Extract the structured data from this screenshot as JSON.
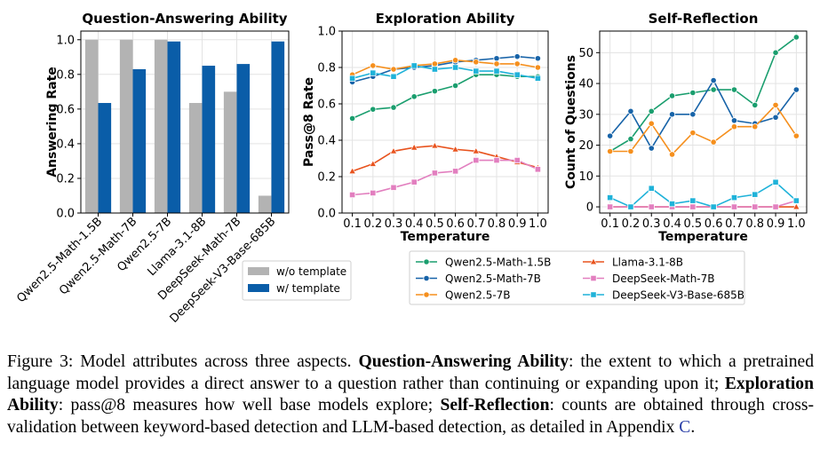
{
  "chart_data": [
    {
      "type": "bar",
      "title": "Question-Answering Ability",
      "xlabel": "",
      "ylabel": "Answering Rate",
      "ylim": [
        0,
        1.05
      ],
      "yticks": [
        "0.0",
        "0.2",
        "0.4",
        "0.6",
        "0.8",
        "1.0"
      ],
      "grid": true,
      "legend_placement": "lower-right",
      "categories": [
        "Qwen2.5-Math-1.5B",
        "Qwen2.5-Math-7B",
        "Qwen2.5-7B",
        "Llama-3.1-8B",
        "DeepSeek-Math-7B",
        "DeepSeek-V3-Base-685B"
      ],
      "series": [
        {
          "name": "w/o template",
          "color": "#b3b3b3",
          "values": [
            1.0,
            1.0,
            1.0,
            0.635,
            0.7,
            0.1
          ]
        },
        {
          "name": "w/ template",
          "color": "#0a5da8",
          "values": [
            0.635,
            0.83,
            0.99,
            0.85,
            0.86,
            0.99
          ]
        }
      ]
    },
    {
      "type": "line",
      "title": "Exploration Ability",
      "xlabel": "Temperature",
      "ylabel": "Pass@8 Rate",
      "xlim": [
        0.05,
        1.05
      ],
      "ylim": [
        0.0,
        1.0
      ],
      "yticks": [
        "0.0",
        "0.2",
        "0.4",
        "0.6",
        "0.8",
        "1.0"
      ],
      "xticks": [
        "0.1",
        "0.2",
        "0.3",
        "0.4",
        "0.5",
        "0.6",
        "0.7",
        "0.8",
        "0.9",
        "1.0"
      ],
      "grid": true,
      "x": [
        0.1,
        0.2,
        0.3,
        0.4,
        0.5,
        0.6,
        0.7,
        0.8,
        0.9,
        1.0
      ],
      "series": [
        {
          "name": "Qwen2.5-Math-1.5B",
          "color": "#1a9e6e",
          "marker": "circle",
          "values": [
            0.52,
            0.57,
            0.58,
            0.64,
            0.67,
            0.7,
            0.76,
            0.76,
            0.75,
            0.75
          ]
        },
        {
          "name": "Qwen2.5-Math-7B",
          "color": "#1763a8",
          "marker": "circle",
          "values": [
            0.72,
            0.75,
            0.79,
            0.8,
            0.81,
            0.83,
            0.84,
            0.85,
            0.86,
            0.85
          ]
        },
        {
          "name": "Qwen2.5-7B",
          "color": "#f58f1d",
          "marker": "circle",
          "values": [
            0.76,
            0.81,
            0.79,
            0.81,
            0.82,
            0.84,
            0.83,
            0.82,
            0.82,
            0.8
          ]
        },
        {
          "name": "Llama-3.1-8B",
          "color": "#e8531e",
          "marker": "triangle",
          "values": [
            0.23,
            0.27,
            0.34,
            0.36,
            0.37,
            0.35,
            0.34,
            0.31,
            0.28,
            0.25
          ]
        },
        {
          "name": "DeepSeek-Math-7B",
          "color": "#e27fbf",
          "marker": "square",
          "values": [
            0.1,
            0.11,
            0.14,
            0.17,
            0.22,
            0.23,
            0.29,
            0.29,
            0.29,
            0.24
          ]
        },
        {
          "name": "DeepSeek-V3-Base-685B",
          "color": "#1fb2d9",
          "marker": "square",
          "values": [
            0.74,
            0.77,
            0.75,
            0.81,
            0.79,
            0.8,
            0.78,
            0.78,
            0.76,
            0.74
          ]
        }
      ]
    },
    {
      "type": "line",
      "title": "Self-Reflection",
      "xlabel": "Temperature",
      "ylabel": "Count of Questions",
      "xlim": [
        0.05,
        1.05
      ],
      "ylim": [
        -2,
        57
      ],
      "yticks": [
        "0",
        "10",
        "20",
        "30",
        "40",
        "50"
      ],
      "xticks": [
        "0.1",
        "0.2",
        "0.3",
        "0.4",
        "0.5",
        "0.6",
        "0.7",
        "0.8",
        "0.9",
        "1.0"
      ],
      "grid": true,
      "x": [
        0.1,
        0.2,
        0.3,
        0.4,
        0.5,
        0.6,
        0.7,
        0.8,
        0.9,
        1.0
      ],
      "series": [
        {
          "name": "Qwen2.5-Math-1.5B",
          "color": "#1a9e6e",
          "marker": "circle",
          "values": [
            18,
            22,
            31,
            36,
            37,
            38,
            38,
            33,
            50,
            55
          ]
        },
        {
          "name": "Qwen2.5-Math-7B",
          "color": "#1763a8",
          "marker": "circle",
          "values": [
            23,
            31,
            19,
            30,
            30,
            41,
            28,
            27,
            29,
            38
          ]
        },
        {
          "name": "Qwen2.5-7B",
          "color": "#f58f1d",
          "marker": "circle",
          "values": [
            18,
            18,
            27,
            17,
            24,
            21,
            26,
            26,
            33,
            23
          ]
        },
        {
          "name": "Llama-3.1-8B",
          "color": "#e8531e",
          "marker": "triangle",
          "values": [
            0,
            0,
            0,
            0,
            0,
            0,
            0,
            0,
            0,
            0
          ]
        },
        {
          "name": "DeepSeek-Math-7B",
          "color": "#e27fbf",
          "marker": "square",
          "values": [
            0,
            0,
            0,
            0,
            0,
            0,
            0,
            0,
            0,
            2
          ]
        },
        {
          "name": "DeepSeek-V3-Base-685B",
          "color": "#1fb2d9",
          "marker": "square",
          "values": [
            3,
            0,
            6,
            1,
            2,
            0,
            3,
            4,
            8,
            2
          ]
        }
      ]
    }
  ],
  "legend_line": {
    "entries": [
      "Qwen2.5-Math-1.5B",
      "Llama-3.1-8B",
      "Qwen2.5-Math-7B",
      "DeepSeek-Math-7B",
      "Qwen2.5-7B",
      "DeepSeek-V3-Base-685B"
    ]
  },
  "caption": {
    "fig": "Figure 3: Model attributes across three aspects. ",
    "b1": "Question-Answering Ability",
    "t1": ": the extent to which a pretrained language model provides a direct answer to a question rather than continuing or expanding upon it; ",
    "b2": "Exploration Ability",
    "t2": ": pass@8 measures how well base models explore; ",
    "b3": "Self-Reflection",
    "t3": ": counts are obtained through cross-validation between keyword-based detection and LLM-based detection, as detailed in Appendix ",
    "appendix": "C",
    "end": "."
  }
}
